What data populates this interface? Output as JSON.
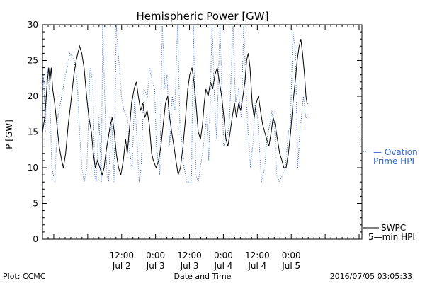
{
  "chart_data": {
    "type": "line",
    "title": "Hemispheric Power [GW]",
    "xlabel": "Date and Time",
    "ylabel": "P [GW]",
    "ylim": [
      0,
      30
    ],
    "yticks": [
      0,
      5,
      10,
      15,
      20,
      25,
      30
    ],
    "x_unit": "hours",
    "xlim": [
      -16,
      97
    ],
    "x_ticks": [
      {
        "t": 12,
        "time": "12:00",
        "date": "Jul 2"
      },
      {
        "t": 24,
        "time": "0:00",
        "date": "Jul 3"
      },
      {
        "t": 36,
        "time": "12:00",
        "date": "Jul 3"
      },
      {
        "t": 48,
        "time": "0:00",
        "date": "Jul 4"
      },
      {
        "t": 60,
        "time": "12:00",
        "date": "Jul 4"
      },
      {
        "t": 72,
        "time": "0:00",
        "date": "Jul 5"
      }
    ],
    "series": [
      {
        "name": "Ovation Prime HPI",
        "style": "dotted",
        "color": "#3366cc",
        "points": [
          [
            -16,
            21
          ],
          [
            -15.6,
            23
          ],
          [
            -15.0,
            15
          ],
          [
            -14.3,
            24
          ],
          [
            -13.4,
            20
          ],
          [
            -12.7,
            10
          ],
          [
            -11.7,
            8
          ],
          [
            -10.6,
            17
          ],
          [
            -9.2,
            20
          ],
          [
            -7.8,
            23
          ],
          [
            -6.3,
            26
          ],
          [
            -4.8,
            25
          ],
          [
            -3.7,
            22
          ],
          [
            -2.9,
            15
          ],
          [
            -2.1,
            10
          ],
          [
            -1.3,
            8
          ],
          [
            -0.3,
            10
          ],
          [
            0.8,
            24
          ],
          [
            1.8,
            22
          ],
          [
            2.5,
            9
          ],
          [
            3.0,
            8
          ],
          [
            4.0,
            17
          ],
          [
            4.8,
            8
          ],
          [
            5.3,
            30
          ],
          [
            6.8,
            9
          ],
          [
            7.4,
            8
          ],
          [
            8.4,
            17
          ],
          [
            9.3,
            8
          ],
          [
            10.1,
            30
          ],
          [
            11.9,
            20
          ],
          [
            12.8,
            18
          ],
          [
            14.0,
            17
          ],
          [
            14.9,
            12
          ],
          [
            15.7,
            10
          ],
          [
            16.6,
            20
          ],
          [
            18.2,
            8
          ],
          [
            18.9,
            10
          ],
          [
            19.9,
            21
          ],
          [
            21.1,
            20
          ],
          [
            21.9,
            24
          ],
          [
            22.9,
            22
          ],
          [
            23.7,
            21
          ],
          [
            24.3,
            13
          ],
          [
            25.5,
            9
          ],
          [
            26.4,
            30
          ],
          [
            27.3,
            21
          ],
          [
            28.1,
            23
          ],
          [
            29.0,
            13
          ],
          [
            29.9,
            20
          ],
          [
            30.8,
            18
          ],
          [
            31.8,
            30
          ],
          [
            32.6,
            16
          ],
          [
            33.5,
            13
          ],
          [
            34.1,
            10
          ],
          [
            35.1,
            8
          ],
          [
            36.7,
            8
          ],
          [
            37.4,
            30
          ],
          [
            38.3,
            9
          ],
          [
            39.1,
            8
          ],
          [
            40.6,
            12
          ],
          [
            42.0,
            17
          ],
          [
            42.8,
            11
          ],
          [
            44.0,
            30
          ],
          [
            44.8,
            20
          ],
          [
            45.6,
            14
          ],
          [
            46.8,
            30
          ],
          [
            47.4,
            22
          ],
          [
            48.1,
            13
          ],
          [
            49.1,
            14
          ],
          [
            50.1,
            16
          ],
          [
            51.4,
            30
          ],
          [
            52.3,
            19
          ],
          [
            53.3,
            21
          ],
          [
            54.3,
            17
          ],
          [
            55.2,
            30
          ],
          [
            56.0,
            21
          ],
          [
            56.7,
            15
          ],
          [
            57.6,
            10
          ],
          [
            58.6,
            14
          ],
          [
            59.2,
            19
          ],
          [
            60.1,
            17
          ],
          [
            61.5,
            8
          ],
          [
            62.6,
            10
          ],
          [
            63.4,
            14
          ],
          [
            64.4,
            16
          ],
          [
            65.2,
            18
          ],
          [
            66.2,
            15
          ],
          [
            66.8,
            9
          ],
          [
            67.8,
            8
          ],
          [
            69.0,
            9
          ],
          [
            69.9,
            10
          ],
          [
            71.0,
            15
          ],
          [
            71.7,
            16
          ],
          [
            72.6,
            29
          ],
          [
            73.5,
            26
          ],
          [
            74.3,
            10
          ],
          [
            75.1,
            15
          ],
          [
            76.3,
            20
          ],
          [
            77.1,
            17
          ],
          [
            78.0,
            17
          ]
        ]
      },
      {
        "name": "SWPC 5-min HPI",
        "style": "solid",
        "color": "#000000",
        "points": [
          [
            -16,
            15
          ],
          [
            -15.2,
            17
          ],
          [
            -14.3,
            22
          ],
          [
            -13.8,
            24
          ],
          [
            -13.4,
            22
          ],
          [
            -12.9,
            24
          ],
          [
            -12.4,
            21
          ],
          [
            -11.7,
            19
          ],
          [
            -10.9,
            16
          ],
          [
            -10.1,
            13
          ],
          [
            -9.2,
            11
          ],
          [
            -8.6,
            10
          ],
          [
            -7.8,
            12
          ],
          [
            -6.9,
            16
          ],
          [
            -6.0,
            19
          ],
          [
            -4.9,
            23
          ],
          [
            -4.1,
            25
          ],
          [
            -3.5,
            26
          ],
          [
            -2.9,
            27
          ],
          [
            -2.1,
            26
          ],
          [
            -1.3,
            24
          ],
          [
            -0.4,
            20
          ],
          [
            0.4,
            17
          ],
          [
            1.3,
            15
          ],
          [
            2.0,
            12
          ],
          [
            2.7,
            10
          ],
          [
            3.5,
            11
          ],
          [
            4.3,
            10
          ],
          [
            5.1,
            9
          ],
          [
            5.8,
            10
          ],
          [
            6.4,
            12
          ],
          [
            7.2,
            14
          ],
          [
            8.0,
            16
          ],
          [
            8.7,
            17
          ],
          [
            9.4,
            15
          ],
          [
            10.1,
            12
          ],
          [
            10.9,
            10
          ],
          [
            11.7,
            9
          ],
          [
            12.6,
            11
          ],
          [
            13.4,
            14
          ],
          [
            14.0,
            12
          ],
          [
            14.9,
            16
          ],
          [
            15.5,
            19
          ],
          [
            16.4,
            21
          ],
          [
            17.2,
            22
          ],
          [
            17.9,
            20
          ],
          [
            18.7,
            18
          ],
          [
            19.5,
            19
          ],
          [
            20.2,
            17
          ],
          [
            21.0,
            18
          ],
          [
            21.8,
            16
          ],
          [
            22.6,
            12
          ],
          [
            23.2,
            11
          ],
          [
            24.2,
            10
          ],
          [
            25.1,
            11
          ],
          [
            25.9,
            13
          ],
          [
            26.7,
            16
          ],
          [
            27.5,
            19
          ],
          [
            28.3,
            20
          ],
          [
            29.0,
            17
          ],
          [
            29.7,
            15
          ],
          [
            30.5,
            13
          ],
          [
            31.2,
            11
          ],
          [
            32.0,
            9
          ],
          [
            32.8,
            10
          ],
          [
            33.7,
            13
          ],
          [
            34.6,
            17
          ],
          [
            35.4,
            21
          ],
          [
            36.1,
            23
          ],
          [
            36.9,
            24
          ],
          [
            37.6,
            22
          ],
          [
            38.3,
            19
          ],
          [
            39.1,
            15
          ],
          [
            39.9,
            14
          ],
          [
            40.6,
            16
          ],
          [
            41.2,
            19
          ],
          [
            41.8,
            21
          ],
          [
            42.6,
            20
          ],
          [
            43.4,
            22
          ],
          [
            44.2,
            21
          ],
          [
            45.0,
            23
          ],
          [
            45.8,
            24
          ],
          [
            46.6,
            22
          ],
          [
            47.4,
            20
          ],
          [
            48.2,
            17
          ],
          [
            48.9,
            14
          ],
          [
            49.6,
            13
          ],
          [
            50.4,
            15
          ],
          [
            51.1,
            17
          ],
          [
            51.9,
            19
          ],
          [
            52.6,
            17
          ],
          [
            53.4,
            19
          ],
          [
            54.1,
            18
          ],
          [
            54.9,
            20
          ],
          [
            55.6,
            22
          ],
          [
            56.2,
            25
          ],
          [
            56.8,
            26
          ],
          [
            57.4,
            24
          ],
          [
            58.2,
            19
          ],
          [
            58.9,
            17
          ],
          [
            59.6,
            19
          ],
          [
            60.4,
            20
          ],
          [
            61.1,
            18
          ],
          [
            61.9,
            16
          ],
          [
            62.6,
            15
          ],
          [
            63.3,
            14
          ],
          [
            64.1,
            13
          ],
          [
            64.9,
            15
          ],
          [
            65.6,
            17
          ],
          [
            66.3,
            16
          ],
          [
            67.1,
            14
          ],
          [
            67.9,
            12
          ],
          [
            68.7,
            11
          ],
          [
            69.4,
            10
          ],
          [
            70.2,
            10
          ],
          [
            71.0,
            12
          ],
          [
            71.8,
            15
          ],
          [
            72.6,
            19
          ],
          [
            73.4,
            22
          ],
          [
            74.1,
            25
          ],
          [
            74.8,
            27
          ],
          [
            75.4,
            28
          ],
          [
            76.0,
            26
          ],
          [
            76.7,
            23
          ],
          [
            77.2,
            20
          ],
          [
            77.6,
            19
          ],
          [
            78.0,
            19
          ]
        ]
      }
    ],
    "legend": [
      {
        "lines": [
          "— Ovation",
          "Prime HPI"
        ],
        "style": "dotted",
        "color": "#3366cc"
      },
      {
        "lines": [
          "SWPC",
          "5—min HPI"
        ],
        "style": "solid",
        "color": "#000000"
      }
    ]
  },
  "footer": {
    "left": "Plot: CCMC",
    "center": "Date and Time",
    "right": "2016/07/05 03:05:33"
  }
}
